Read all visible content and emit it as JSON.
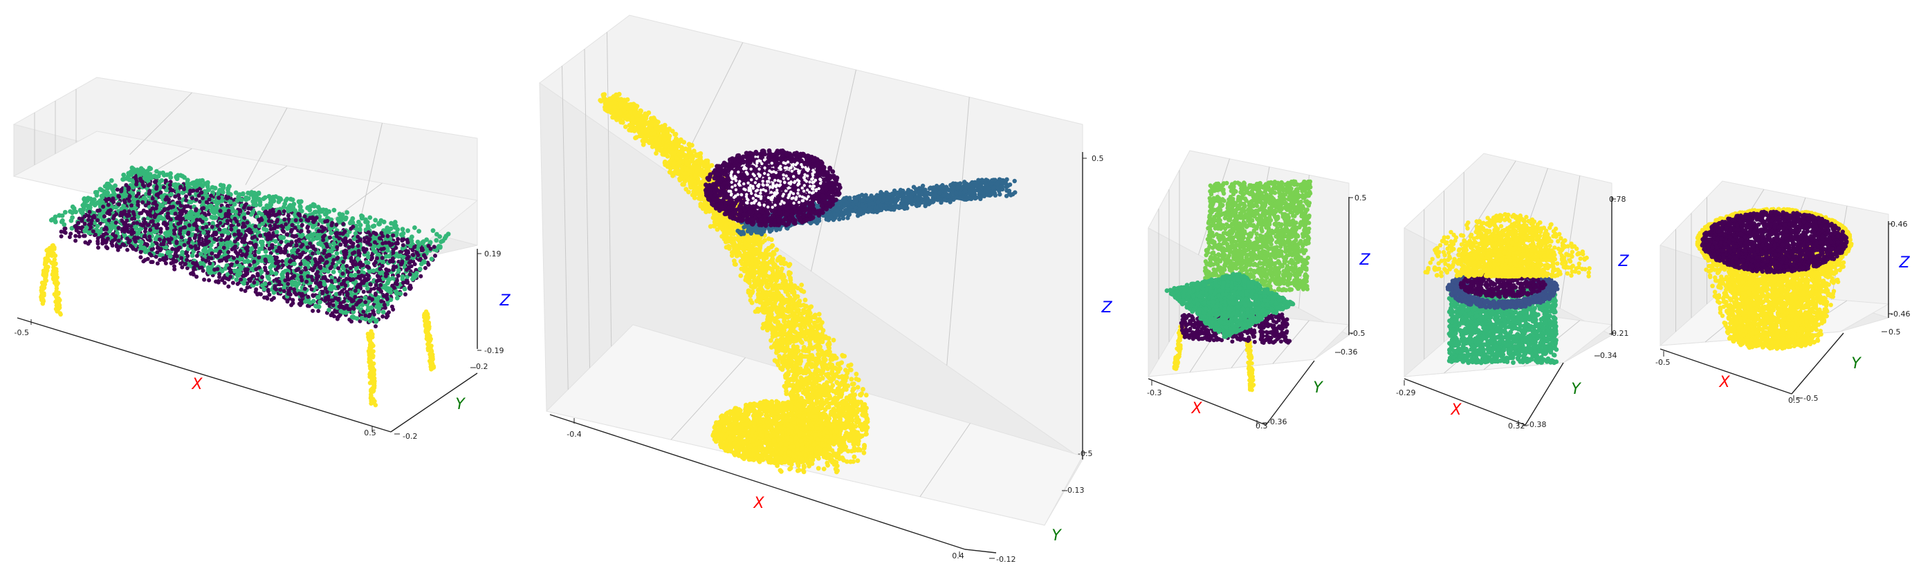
{
  "colors": {
    "x_label": "#ff0000",
    "y_label": "#0a7a0a",
    "z_label": "#0000ff",
    "pane": "#f2f2f2",
    "viridis_purple": "#440154",
    "viridis_indigo": "#3b528b",
    "viridis_blue": "#31688e",
    "viridis_green": "#35b779",
    "viridis_lime": "#7ad151",
    "viridis_yellow": "#fde725"
  },
  "chart_data": [
    {
      "type": "scatter",
      "projection": "3d",
      "object": "table",
      "xlabel": "X",
      "ylabel": "Y",
      "zlabel": "Z",
      "xlim": [
        -0.65,
        0.65
      ],
      "ylim": [
        -0.22,
        0.22
      ],
      "zlim": [
        -0.2,
        0.2
      ],
      "xticks": [
        "-0.5",
        "0.5"
      ],
      "yticks": [
        "0.2",
        "-0.2"
      ],
      "zticks": [
        "0.19",
        "-0.19"
      ],
      "grid": true,
      "parts": [
        {
          "part": "top surface",
          "color": "#35b779"
        },
        {
          "part": "top underside",
          "color": "#440154"
        },
        {
          "part": "legs",
          "color": "#fde725"
        }
      ]
    },
    {
      "type": "scatter",
      "projection": "3d",
      "object": "lamp",
      "xlabel": "X",
      "ylabel": "Y",
      "zlabel": "Z",
      "xlim": [
        -0.5,
        0.5
      ],
      "ylim": [
        -0.12,
        0.13
      ],
      "zlim": [
        -0.5,
        0.5
      ],
      "xticks": [
        "-0.4",
        "0.4"
      ],
      "yticks": [
        "0.13",
        "-0.12"
      ],
      "zticks": [
        "0.5",
        "-0.5"
      ],
      "grid": true,
      "parts": [
        {
          "part": "curved stem",
          "color": "#fde725"
        },
        {
          "part": "round shade",
          "color": "#440154"
        },
        {
          "part": "arm",
          "color": "#31688e"
        }
      ]
    },
    {
      "type": "scatter",
      "projection": "3d",
      "object": "chair",
      "xlabel": "X",
      "ylabel": "Y",
      "zlabel": "Z",
      "xlim": [
        -0.3,
        0.3
      ],
      "ylim": [
        -0.36,
        0.36
      ],
      "zlim": [
        -0.5,
        0.5
      ],
      "xticks": [
        "-0.3",
        "0.3"
      ],
      "yticks": [
        "0.36",
        "-0.36"
      ],
      "zticks": [
        "0.5",
        "-0.5"
      ],
      "grid": true,
      "parts": [
        {
          "part": "back",
          "color": "#7ad151"
        },
        {
          "part": "seat",
          "color": "#35b779"
        },
        {
          "part": "frame",
          "color": "#440154"
        },
        {
          "part": "legs",
          "color": "#fde725"
        }
      ]
    },
    {
      "type": "scatter",
      "projection": "3d",
      "object": "potted plant",
      "xlabel": "X",
      "ylabel": "Y",
      "zlabel": "Z",
      "xlim": [
        -0.29,
        0.32
      ],
      "ylim": [
        -0.38,
        0.34
      ],
      "zlim": [
        -0.21,
        0.78
      ],
      "xticks": [
        "-0.29",
        "0.32"
      ],
      "yticks": [
        "0.34",
        "-0.38"
      ],
      "zticks": [
        "0.78",
        "-0.21"
      ],
      "grid": true,
      "parts": [
        {
          "part": "pot",
          "color": "#35b779"
        },
        {
          "part": "rim",
          "color": "#3b528b"
        },
        {
          "part": "soil",
          "color": "#440154"
        },
        {
          "part": "plant",
          "color": "#fde725"
        }
      ]
    },
    {
      "type": "scatter",
      "projection": "3d",
      "object": "bowl",
      "xlabel": "X",
      "ylabel": "Y",
      "zlabel": "Z",
      "xlim": [
        -0.5,
        0.5
      ],
      "ylim": [
        -0.5,
        0.5
      ],
      "zlim": [
        -0.46,
        0.46
      ],
      "xticks": [
        "-0.5",
        "0.5"
      ],
      "yticks": [
        "0.5",
        "-0.5"
      ],
      "zticks": [
        "0.46",
        "-0.46"
      ],
      "grid": true,
      "parts": [
        {
          "part": "inside",
          "color": "#440154"
        },
        {
          "part": "outer wall",
          "color": "#fde725"
        }
      ]
    }
  ]
}
